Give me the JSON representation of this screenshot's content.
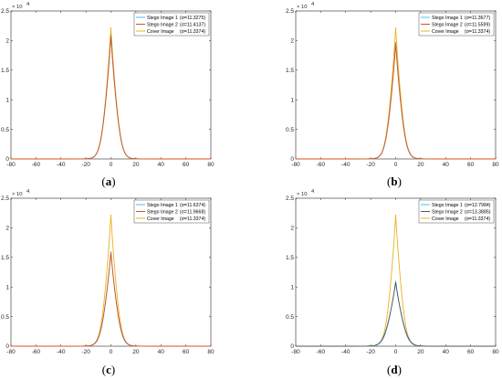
{
  "chart_data": [
    {
      "type": "line",
      "caption": "(a)",
      "y_exponent_label": "× 10",
      "y_exponent_power": "4",
      "xlim": [
        -80,
        80
      ],
      "ylim": [
        0,
        2.5
      ],
      "y_scale_multiplier": 10000,
      "x_ticks": [
        -80,
        -60,
        -40,
        -20,
        0,
        20,
        40,
        60,
        80
      ],
      "y_ticks": [
        0,
        0.5,
        1,
        1.5,
        2,
        2.5
      ],
      "x_tick_labels": [
        "-80",
        "-60",
        "-40",
        "-20",
        "0",
        "20",
        "40",
        "60",
        "80"
      ],
      "y_tick_labels": [
        "0",
        "0.5",
        "1",
        "1.5",
        "2",
        "2.5"
      ],
      "legend_placement": "top-right",
      "series": [
        {
          "name": "Stego Image 1",
          "sigma_label": "(σ=11.3275)",
          "color": "#4dbeee",
          "peak": 2.1,
          "sigma": 11.3275
        },
        {
          "name": "Stego Image 2",
          "sigma_label": "(σ=11.4137)",
          "color": "#d95319",
          "peak": 2.08,
          "sigma": 11.4137
        },
        {
          "name": "Cover Image  ",
          "sigma_label": "(σ=11.3374)",
          "color": "#edb120",
          "peak": 2.22,
          "sigma": 11.3374
        }
      ]
    },
    {
      "type": "line",
      "caption": "(b)",
      "y_exponent_label": "× 10",
      "y_exponent_power": "4",
      "xlim": [
        -80,
        80
      ],
      "ylim": [
        0,
        2.5
      ],
      "y_scale_multiplier": 10000,
      "x_ticks": [
        -80,
        -60,
        -40,
        -20,
        0,
        20,
        40,
        60,
        80
      ],
      "y_ticks": [
        0,
        0.5,
        1,
        1.5,
        2,
        2.5
      ],
      "x_tick_labels": [
        "-80",
        "-60",
        "-40",
        "-20",
        "0",
        "20",
        "40",
        "60",
        "80"
      ],
      "y_tick_labels": [
        "0",
        "0.5",
        "1",
        "1.5",
        "2",
        "2.5"
      ],
      "legend_placement": "top-right",
      "series": [
        {
          "name": "Stego Image 1",
          "sigma_label": "(σ=11.3677)",
          "color": "#4dbeee",
          "peak": 1.97,
          "sigma": 11.3677
        },
        {
          "name": "Stego Image 2",
          "sigma_label": "(σ=11.5599)",
          "color": "#d95319",
          "peak": 1.95,
          "sigma": 11.5599
        },
        {
          "name": "Cover Image  ",
          "sigma_label": "(σ=11.3374)",
          "color": "#edb120",
          "peak": 2.22,
          "sigma": 11.3374
        }
      ]
    },
    {
      "type": "line",
      "caption": "(c)",
      "y_exponent_label": "× 10",
      "y_exponent_power": "4",
      "xlim": [
        -80,
        80
      ],
      "ylim": [
        0,
        2.5
      ],
      "y_scale_multiplier": 10000,
      "x_ticks": [
        -80,
        -60,
        -40,
        -20,
        0,
        20,
        40,
        60,
        80
      ],
      "y_ticks": [
        0,
        0.5,
        1,
        1.5,
        2,
        2.5
      ],
      "x_tick_labels": [
        "-80",
        "-60",
        "-40",
        "-20",
        "0",
        "20",
        "40",
        "60",
        "80"
      ],
      "y_tick_labels": [
        "0",
        "0.5",
        "1",
        "1.5",
        "2",
        "2.5"
      ],
      "legend_placement": "top-right",
      "series": [
        {
          "name": "Stego Image 1",
          "sigma_label": "(σ=11.6374)",
          "color": "#4dbeee",
          "peak": 1.6,
          "sigma": 11.6374
        },
        {
          "name": "Stego Image 2",
          "sigma_label": "(σ=11.9668)",
          "color": "#d95319",
          "peak": 1.58,
          "sigma": 11.9668
        },
        {
          "name": "Cover Image  ",
          "sigma_label": "(σ=11.3374)",
          "color": "#edb120",
          "peak": 2.22,
          "sigma": 11.3374
        }
      ]
    },
    {
      "type": "line",
      "caption": "(d)",
      "y_exponent_label": "× 10",
      "y_exponent_power": "4",
      "xlim": [
        -80,
        80
      ],
      "ylim": [
        0,
        2.5
      ],
      "y_scale_multiplier": 10000,
      "x_ticks": [
        -80,
        -60,
        -40,
        -20,
        0,
        20,
        40,
        60,
        80
      ],
      "y_ticks": [
        0,
        0.5,
        1,
        1.5,
        2,
        2.5
      ],
      "x_tick_labels": [
        "-80",
        "-60",
        "-40",
        "-20",
        "0",
        "20",
        "40",
        "60",
        "80"
      ],
      "y_tick_labels": [
        "0",
        "0.5",
        "1",
        "1.5",
        "2",
        "2.5"
      ],
      "legend_placement": "top-right",
      "series": [
        {
          "name": "Stego Image 1",
          "sigma_label": "(σ=12.7984)",
          "color": "#4dbeee",
          "peak": 1.1,
          "sigma": 12.7984
        },
        {
          "name": "Stego Image 2",
          "sigma_label": "(σ=13.3885)",
          "color": "#555555",
          "peak": 1.08,
          "sigma": 13.3885
        },
        {
          "name": "Cover Image  ",
          "sigma_label": "(σ=11.3374)",
          "color": "#edb120",
          "peak": 2.22,
          "sigma": 11.3374
        }
      ]
    }
  ]
}
